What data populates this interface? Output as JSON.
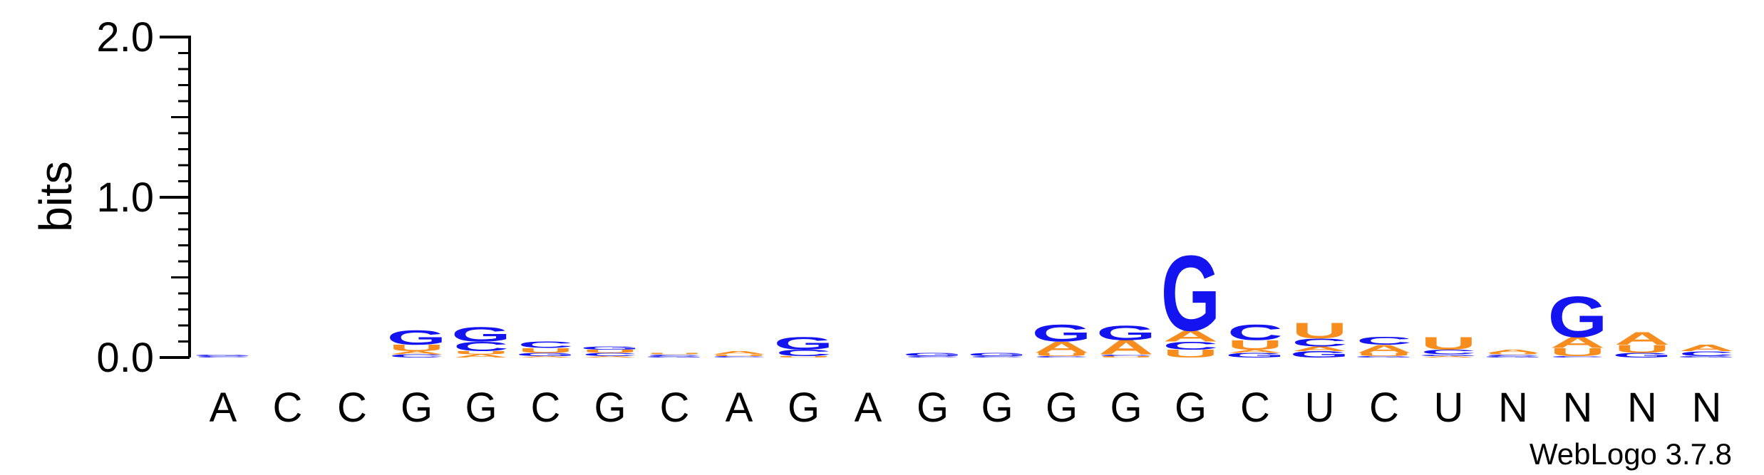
{
  "chart_data": {
    "type": "sequence-logo",
    "ylabel": "bits",
    "ylim": [
      0,
      2.0
    ],
    "yticks": [
      "0.0",
      "1.0",
      "2.0"
    ],
    "credit": "WebLogo 3.7.8",
    "colors": {
      "A": "#f68d1e",
      "U": "#f68d1e",
      "G": "#1414f0",
      "C": "#1414f0"
    },
    "positions": [
      {
        "label": "A",
        "stack": [
          {
            "letter": "C",
            "bits": 0.01
          },
          {
            "letter": "G",
            "bits": 0.01
          }
        ]
      },
      {
        "label": "C",
        "stack": []
      },
      {
        "label": "C",
        "stack": []
      },
      {
        "label": "G",
        "stack": [
          {
            "letter": "C",
            "bits": 0.02
          },
          {
            "letter": "A",
            "bits": 0.02
          },
          {
            "letter": "U",
            "bits": 0.04
          },
          {
            "letter": "G",
            "bits": 0.09
          }
        ]
      },
      {
        "label": "G",
        "stack": [
          {
            "letter": "A",
            "bits": 0.02
          },
          {
            "letter": "U",
            "bits": 0.02
          },
          {
            "letter": "C",
            "bits": 0.06
          },
          {
            "letter": "G",
            "bits": 0.09
          }
        ]
      },
      {
        "label": "C",
        "stack": [
          {
            "letter": "A",
            "bits": 0.01
          },
          {
            "letter": "G",
            "bits": 0.02
          },
          {
            "letter": "U",
            "bits": 0.03
          },
          {
            "letter": "C",
            "bits": 0.04
          }
        ]
      },
      {
        "label": "G",
        "stack": [
          {
            "letter": "A",
            "bits": 0.01
          },
          {
            "letter": "C",
            "bits": 0.02
          },
          {
            "letter": "U",
            "bits": 0.02
          },
          {
            "letter": "G",
            "bits": 0.02
          }
        ]
      },
      {
        "label": "C",
        "stack": [
          {
            "letter": "G",
            "bits": 0.01
          },
          {
            "letter": "C",
            "bits": 0.01
          },
          {
            "letter": "U",
            "bits": 0.01
          }
        ]
      },
      {
        "label": "A",
        "stack": [
          {
            "letter": "C",
            "bits": 0.01
          },
          {
            "letter": "U",
            "bits": 0.01
          },
          {
            "letter": "A",
            "bits": 0.02
          }
        ]
      },
      {
        "label": "G",
        "stack": [
          {
            "letter": "U",
            "bits": 0.01
          },
          {
            "letter": "C",
            "bits": 0.04
          },
          {
            "letter": "G",
            "bits": 0.08
          }
        ]
      },
      {
        "label": "A",
        "stack": []
      },
      {
        "label": "G",
        "stack": [
          {
            "letter": "C",
            "bits": 0.01
          },
          {
            "letter": "G",
            "bits": 0.02
          }
        ]
      },
      {
        "label": "G",
        "stack": [
          {
            "letter": "C",
            "bits": 0.01
          },
          {
            "letter": "G",
            "bits": 0.02
          }
        ]
      },
      {
        "label": "G",
        "stack": [
          {
            "letter": "C",
            "bits": 0.01
          },
          {
            "letter": "U",
            "bits": 0.02
          },
          {
            "letter": "A",
            "bits": 0.07
          },
          {
            "letter": "G",
            "bits": 0.11
          }
        ]
      },
      {
        "label": "G",
        "stack": [
          {
            "letter": "U",
            "bits": 0.01
          },
          {
            "letter": "C",
            "bits": 0.01
          },
          {
            "letter": "A",
            "bits": 0.09
          },
          {
            "letter": "G",
            "bits": 0.09
          }
        ]
      },
      {
        "label": "G",
        "stack": [
          {
            "letter": "U",
            "bits": 0.05
          },
          {
            "letter": "C",
            "bits": 0.05
          },
          {
            "letter": "A",
            "bits": 0.07
          },
          {
            "letter": "G",
            "bits": 0.48
          }
        ]
      },
      {
        "label": "C",
        "stack": [
          {
            "letter": "G",
            "bits": 0.03
          },
          {
            "letter": "A",
            "bits": 0.02
          },
          {
            "letter": "U",
            "bits": 0.06
          },
          {
            "letter": "C",
            "bits": 0.1
          }
        ]
      },
      {
        "label": "U",
        "stack": [
          {
            "letter": "G",
            "bits": 0.04
          },
          {
            "letter": "A",
            "bits": 0.03
          },
          {
            "letter": "C",
            "bits": 0.05
          },
          {
            "letter": "U",
            "bits": 0.1
          }
        ]
      },
      {
        "label": "C",
        "stack": [
          {
            "letter": "G",
            "bits": 0.01
          },
          {
            "letter": "U",
            "bits": 0.02
          },
          {
            "letter": "A",
            "bits": 0.05
          },
          {
            "letter": "C",
            "bits": 0.05
          }
        ]
      },
      {
        "label": "U",
        "stack": [
          {
            "letter": "A",
            "bits": 0.01
          },
          {
            "letter": "G",
            "bits": 0.01
          },
          {
            "letter": "C",
            "bits": 0.03
          },
          {
            "letter": "U",
            "bits": 0.08
          }
        ]
      },
      {
        "label": "N",
        "stack": [
          {
            "letter": "G",
            "bits": 0.01
          },
          {
            "letter": "C",
            "bits": 0.01
          },
          {
            "letter": "U",
            "bits": 0.01
          },
          {
            "letter": "A",
            "bits": 0.02
          }
        ]
      },
      {
        "label": "N",
        "stack": [
          {
            "letter": "C",
            "bits": 0.01
          },
          {
            "letter": "U",
            "bits": 0.05
          },
          {
            "letter": "A",
            "bits": 0.07
          },
          {
            "letter": "G",
            "bits": 0.26
          }
        ]
      },
      {
        "label": "N",
        "stack": [
          {
            "letter": "G",
            "bits": 0.03
          },
          {
            "letter": "U",
            "bits": 0.05
          },
          {
            "letter": "A",
            "bits": 0.08
          }
        ]
      },
      {
        "label": "N",
        "stack": [
          {
            "letter": "G",
            "bits": 0.01
          },
          {
            "letter": "C",
            "bits": 0.03
          },
          {
            "letter": "A",
            "bits": 0.04
          }
        ]
      }
    ]
  }
}
